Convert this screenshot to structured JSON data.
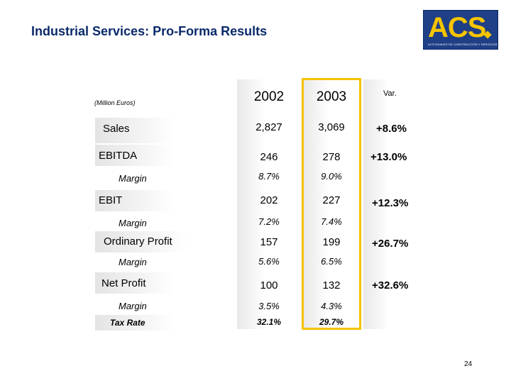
{
  "title": "Industrial Services: Pro-Forma Results",
  "logo": {
    "text": "ACS",
    "subtitle": "ACTIVIDADES DE CONSTRUCCIÓN Y SERVICIOS",
    "colors": {
      "background": "#1f3f86",
      "letters": "#f6c400"
    }
  },
  "table": {
    "units": "(Million Euros)",
    "headers": {
      "y2002": "2002",
      "y2003": "2003",
      "var": "Var."
    },
    "rows": {
      "sales": {
        "label": "Sales",
        "y2002": "2,827",
        "y2003": "3,069",
        "var": "+8.6%"
      },
      "ebitda": {
        "label": "EBITDA",
        "y2002": "246",
        "y2003": "278",
        "var": "+13.0%"
      },
      "ebitda_margin": {
        "label": "Margin",
        "y2002": "8.7%",
        "y2003": "9.0%"
      },
      "ebit": {
        "label": "EBIT",
        "y2002": "202",
        "y2003": "227",
        "var": "+12.3%"
      },
      "ebit_margin": {
        "label": "Margin",
        "y2002": "7.2%",
        "y2003": "7.4%"
      },
      "ordinary": {
        "label": "Ordinary Profit",
        "y2002": "157",
        "y2003": "199",
        "var": "+26.7%"
      },
      "ordinary_margin": {
        "label": "Margin",
        "y2002": "5.6%",
        "y2003": "6.5%"
      },
      "net": {
        "label": "Net Profit",
        "y2002": "100",
        "y2003": "132",
        "var": "+32.6%"
      },
      "net_margin": {
        "label": "Margin",
        "y2002": "3.5%",
        "y2003": "4.3%"
      },
      "tax": {
        "label": "Tax Rate",
        "y2002": "32.1%",
        "y2003": "29.7%"
      }
    },
    "highlight_color": "#f5c200"
  },
  "page_number": "24"
}
